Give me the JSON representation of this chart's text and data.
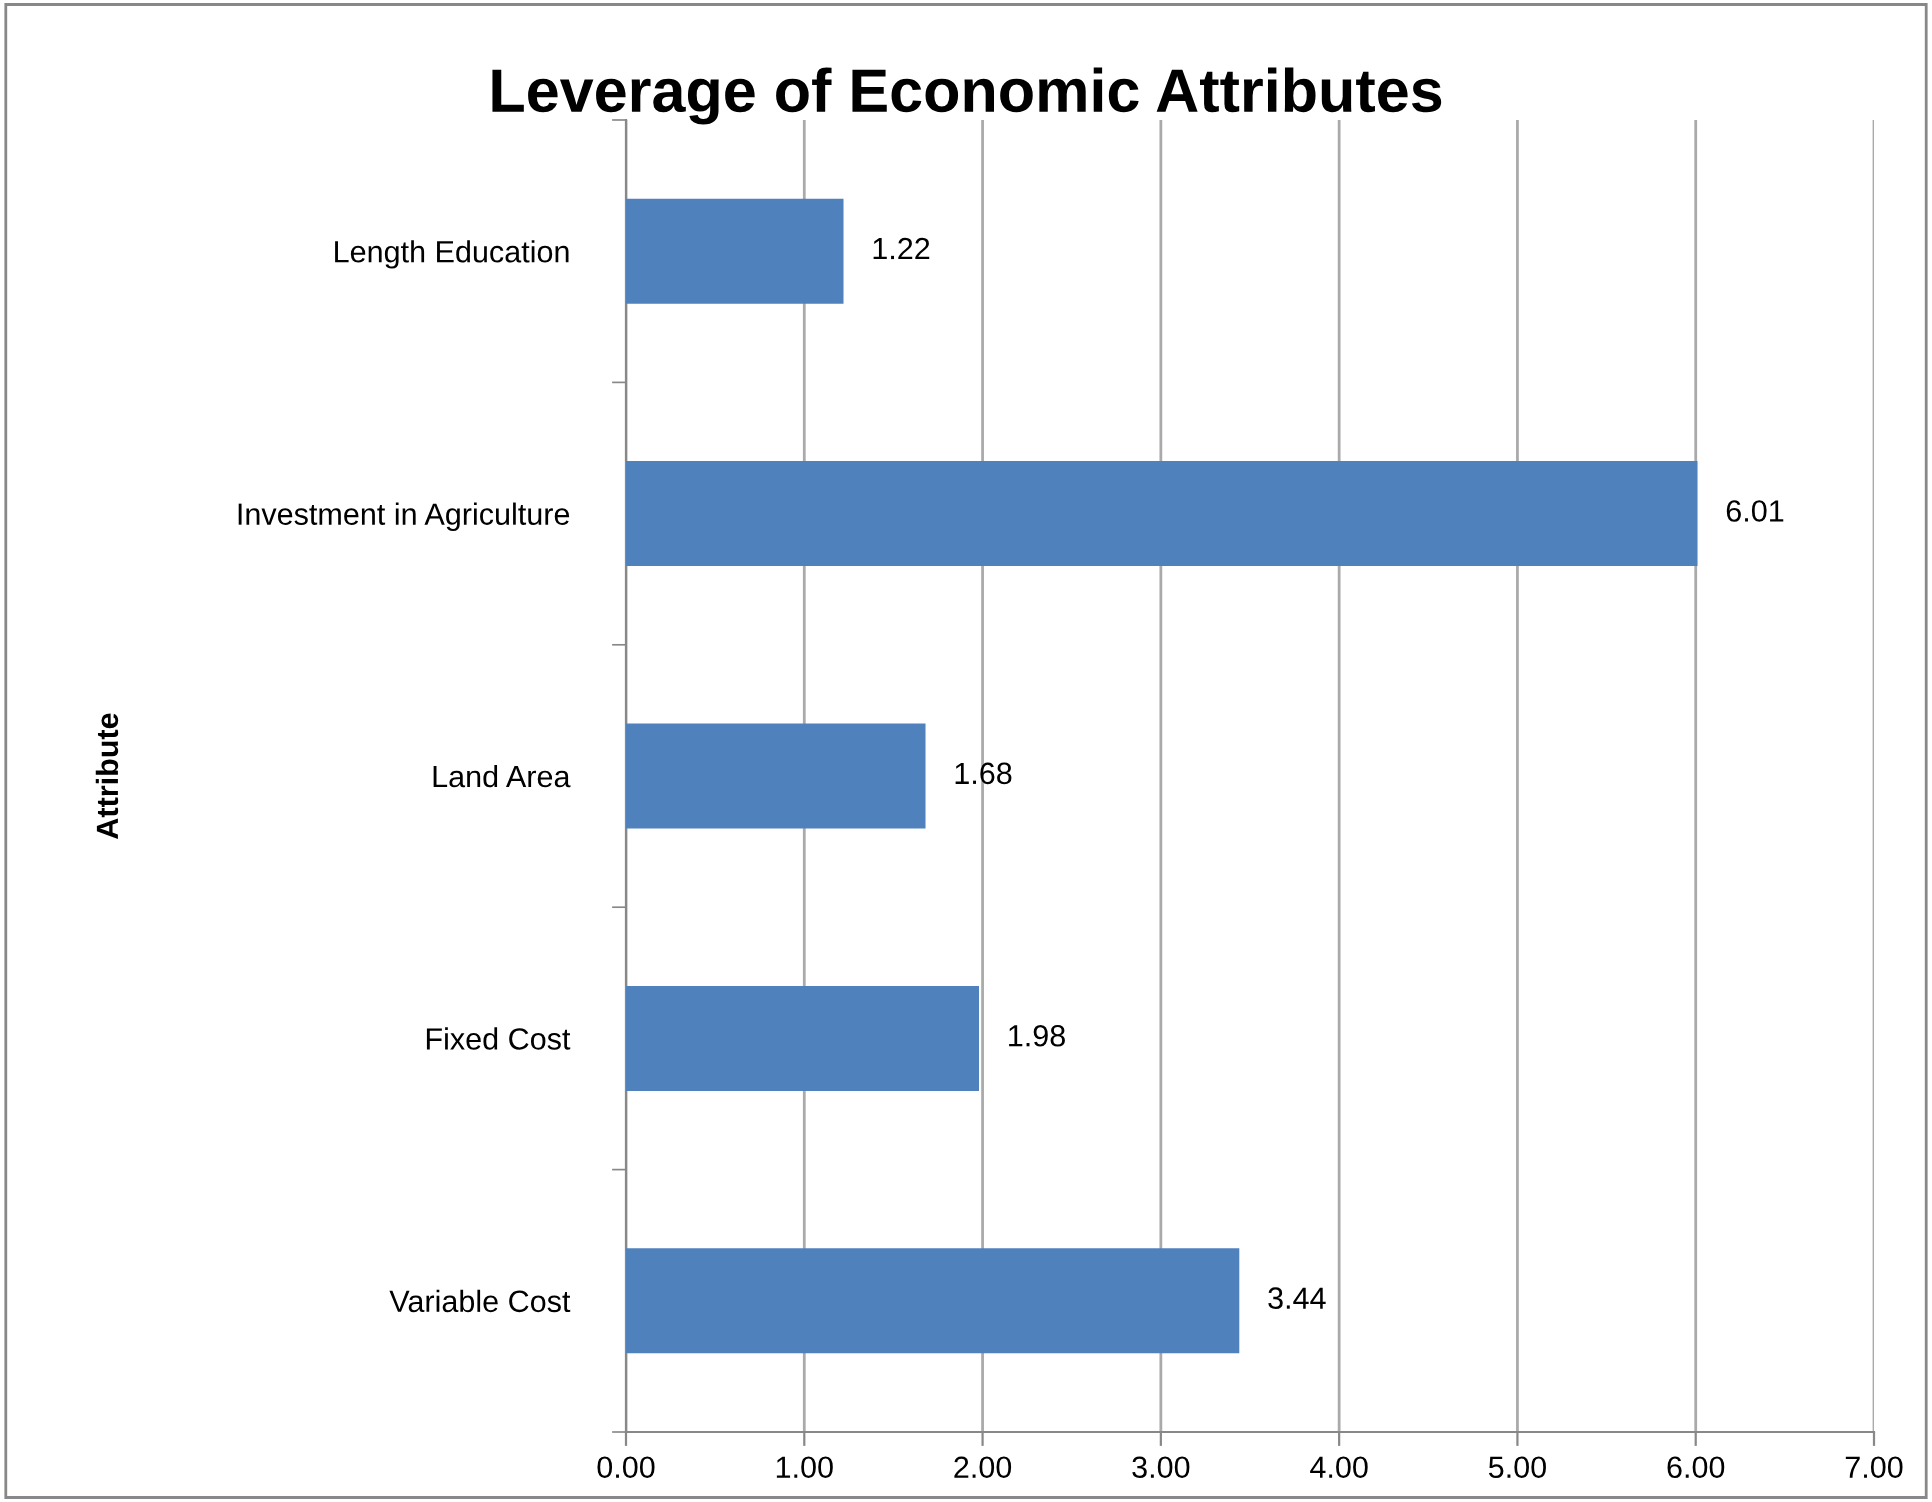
{
  "chart_data": {
    "type": "bar",
    "orientation": "horizontal",
    "title": "Leverage of Economic Attributes",
    "ylabel": "Attribute",
    "categories": [
      "Length Education",
      "Investment in Agriculture",
      "Land Area",
      "Fixed Cost",
      "Variable Cost"
    ],
    "values": [
      1.22,
      6.01,
      1.68,
      1.98,
      3.44
    ],
    "color": "#4f81bd",
    "data_labels": true,
    "xlim": [
      0,
      7
    ],
    "xticks": [
      {
        "value": 0,
        "label": "0.00"
      },
      {
        "value": 1,
        "label": "1.00"
      },
      {
        "value": 2,
        "label": "2.00"
      },
      {
        "value": 3,
        "label": "3.00"
      },
      {
        "value": 4,
        "label": "4.00"
      },
      {
        "value": 5,
        "label": "5.00"
      },
      {
        "value": 6,
        "label": "6.00"
      },
      {
        "value": 7,
        "label": "7.00"
      }
    ],
    "grid": "x"
  }
}
